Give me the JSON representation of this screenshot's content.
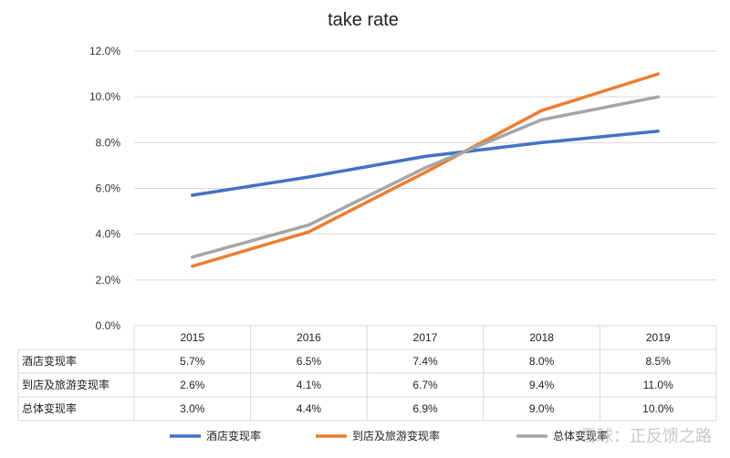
{
  "chart_data": {
    "type": "line",
    "title": "take rate",
    "categories": [
      "2015",
      "2016",
      "2017",
      "2018",
      "2019"
    ],
    "y_ticks": [
      "0.0%",
      "2.0%",
      "4.0%",
      "6.0%",
      "8.0%",
      "10.0%",
      "12.0%"
    ],
    "ylim": [
      0,
      12
    ],
    "grid": true,
    "legend_position": "bottom",
    "series": [
      {
        "name": "酒店变现率",
        "color": "#4472C4",
        "values": [
          5.7,
          6.5,
          7.4,
          8.0,
          8.5
        ],
        "labels": [
          "5.7%",
          "6.5%",
          "7.4%",
          "8.0%",
          "8.5%"
        ]
      },
      {
        "name": "到店及旅游变现率",
        "color": "#ED7D31",
        "values": [
          2.6,
          4.1,
          6.7,
          9.4,
          11.0
        ],
        "labels": [
          "2.6%",
          "4.1%",
          "6.7%",
          "9.4%",
          "11.0%"
        ]
      },
      {
        "name": "总体变现率",
        "color": "#A5A5A5",
        "values": [
          3.0,
          4.4,
          6.9,
          9.0,
          10.0
        ],
        "labels": [
          "3.0%",
          "4.4%",
          "6.9%",
          "9.0%",
          "10.0%"
        ]
      }
    ]
  },
  "watermark": "雪球：正反馈之路"
}
